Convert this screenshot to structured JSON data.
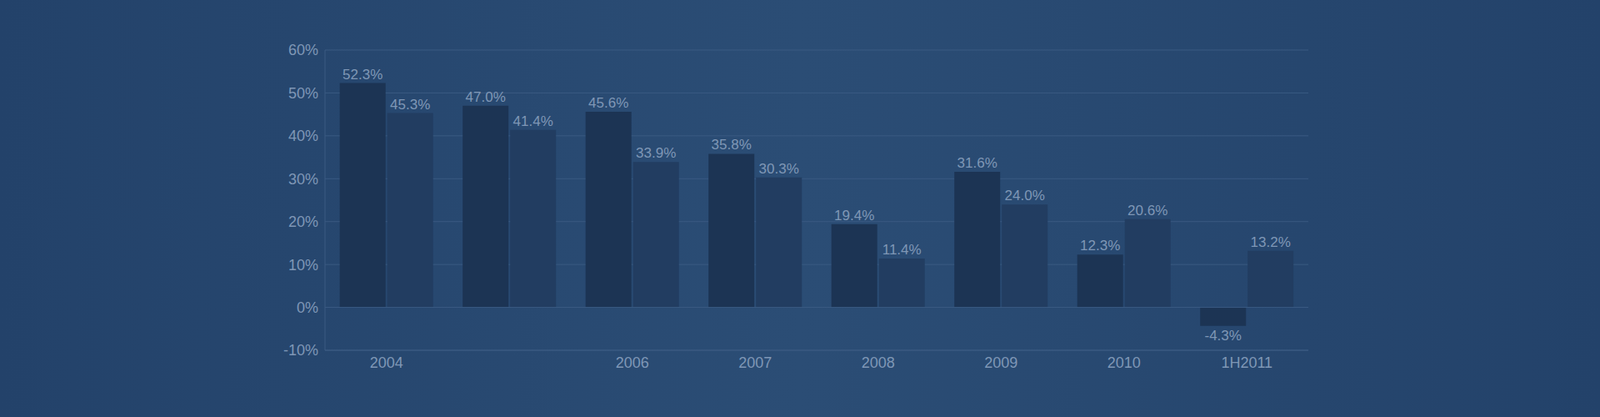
{
  "chart_data": {
    "type": "bar",
    "categories": [
      "2004",
      null,
      "2006",
      "2007",
      "2008",
      "2009",
      "2010",
      "1H2011"
    ],
    "series": [
      {
        "color": "#1c3454",
        "values": [
          52.3,
          47.0,
          45.6,
          35.8,
          19.4,
          31.6,
          12.3,
          -4.3
        ],
        "value_labels": [
          "52.3%",
          "47.0%",
          "45.6%",
          "35.8%",
          "19.4%",
          "31.6%",
          "12.3%",
          "-4.3%"
        ]
      },
      {
        "color": "#223d61",
        "values": [
          45.3,
          41.4,
          33.9,
          30.3,
          11.4,
          24.0,
          20.6,
          13.2
        ],
        "value_labels": [
          "45.3%",
          "41.4%",
          "33.9%",
          "30.3%",
          "11.4%",
          "24.0%",
          "20.6%",
          "13.2%"
        ]
      }
    ],
    "ylim": [
      -10,
      60
    ],
    "yticks": [
      {
        "value": -10,
        "label": "-10%"
      },
      {
        "value": 0,
        "label": "0%"
      },
      {
        "value": 10,
        "label": "10%"
      },
      {
        "value": 20,
        "label": "20%"
      },
      {
        "value": 30,
        "label": "30%"
      },
      {
        "value": 40,
        "label": "40%"
      },
      {
        "value": 50,
        "label": "50%"
      },
      {
        "value": 60,
        "label": "60%"
      }
    ],
    "data_labels": true,
    "grid": true
  }
}
